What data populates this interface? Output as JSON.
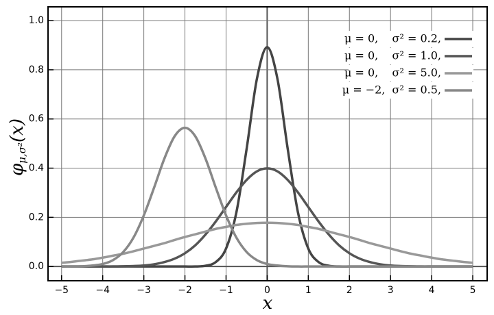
{
  "chart_data": {
    "type": "line",
    "x_label": "x",
    "y_label": {
      "symbol": "φ",
      "subscript": "μ,σ²",
      "argument": "(x)"
    },
    "x": [
      -5,
      -4.75,
      -4.5,
      -4.25,
      -4,
      -3.75,
      -3.5,
      -3.25,
      -3,
      -2.75,
      -2.5,
      -2.25,
      -2,
      -1.75,
      -1.5,
      -1.25,
      -1,
      -0.75,
      -0.5,
      -0.25,
      0,
      0.25,
      0.5,
      0.75,
      1,
      1.25,
      1.5,
      1.75,
      2,
      2.25,
      2.5,
      2.75,
      3,
      3.25,
      3.5,
      3.75,
      4,
      4.25,
      4.5,
      4.75,
      5
    ],
    "series": [
      {
        "name": "μ = 0,    σ² = 0.2,",
        "color": "#444444",
        "values": [
          0,
          0,
          0,
          0,
          0,
          0,
          0,
          0,
          0,
          0,
          0,
          0,
          0,
          0,
          0.003,
          0.018,
          0.073,
          0.219,
          0.478,
          0.763,
          0.892,
          0.763,
          0.478,
          0.219,
          0.073,
          0.018,
          0.003,
          0,
          0,
          0,
          0,
          0,
          0,
          0,
          0,
          0,
          0,
          0,
          0,
          0,
          0
        ]
      },
      {
        "name": "μ = 0,    σ² = 1.0,",
        "color": "#555555",
        "values": [
          0,
          0,
          0,
          0,
          0,
          0,
          0.001,
          0.002,
          0.004,
          0.009,
          0.018,
          0.032,
          0.054,
          0.086,
          0.13,
          0.183,
          0.242,
          0.301,
          0.352,
          0.387,
          0.399,
          0.387,
          0.352,
          0.301,
          0.242,
          0.183,
          0.13,
          0.086,
          0.054,
          0.032,
          0.018,
          0.009,
          0.004,
          0.002,
          0.001,
          0,
          0,
          0,
          0,
          0,
          0
        ]
      },
      {
        "name": "μ = 0,    σ² = 5.0,",
        "color": "#999999",
        "values": [
          0.015,
          0.019,
          0.024,
          0.029,
          0.036,
          0.044,
          0.052,
          0.062,
          0.073,
          0.084,
          0.095,
          0.108,
          0.12,
          0.131,
          0.142,
          0.153,
          0.161,
          0.169,
          0.174,
          0.177,
          0.178,
          0.177,
          0.174,
          0.169,
          0.161,
          0.153,
          0.142,
          0.131,
          0.12,
          0.108,
          0.095,
          0.084,
          0.073,
          0.062,
          0.052,
          0.044,
          0.036,
          0.029,
          0.024,
          0.019,
          0.015
        ]
      },
      {
        "name": "μ = −2,  σ² = 0.5,",
        "color": "#888888",
        "values": [
          0,
          0,
          0.001,
          0.004,
          0.01,
          0.026,
          0.059,
          0.118,
          0.208,
          0.321,
          0.439,
          0.53,
          0.564,
          0.53,
          0.439,
          0.321,
          0.208,
          0.118,
          0.059,
          0.026,
          0.01,
          0.004,
          0.001,
          0,
          0,
          0,
          0,
          0,
          0,
          0,
          0,
          0,
          0,
          0,
          0,
          0,
          0,
          0,
          0,
          0,
          0
        ]
      }
    ],
    "xlim": [
      -5.33,
      5.35
    ],
    "ylim": [
      -0.058,
      1.056
    ],
    "xticks": [
      {
        "value": -5,
        "label": "−5"
      },
      {
        "value": -4,
        "label": "−4"
      },
      {
        "value": -3,
        "label": "−3"
      },
      {
        "value": -2,
        "label": "−2"
      },
      {
        "value": -1,
        "label": "−1"
      },
      0,
      1,
      2,
      3,
      4,
      5
    ],
    "yticks": [
      {
        "value": 0,
        "label": "0.0"
      },
      0.2,
      0.4,
      0.6,
      0.8,
      {
        "value": 1,
        "label": "1.0"
      }
    ],
    "grid": true,
    "legend_loc": "upper right"
  }
}
